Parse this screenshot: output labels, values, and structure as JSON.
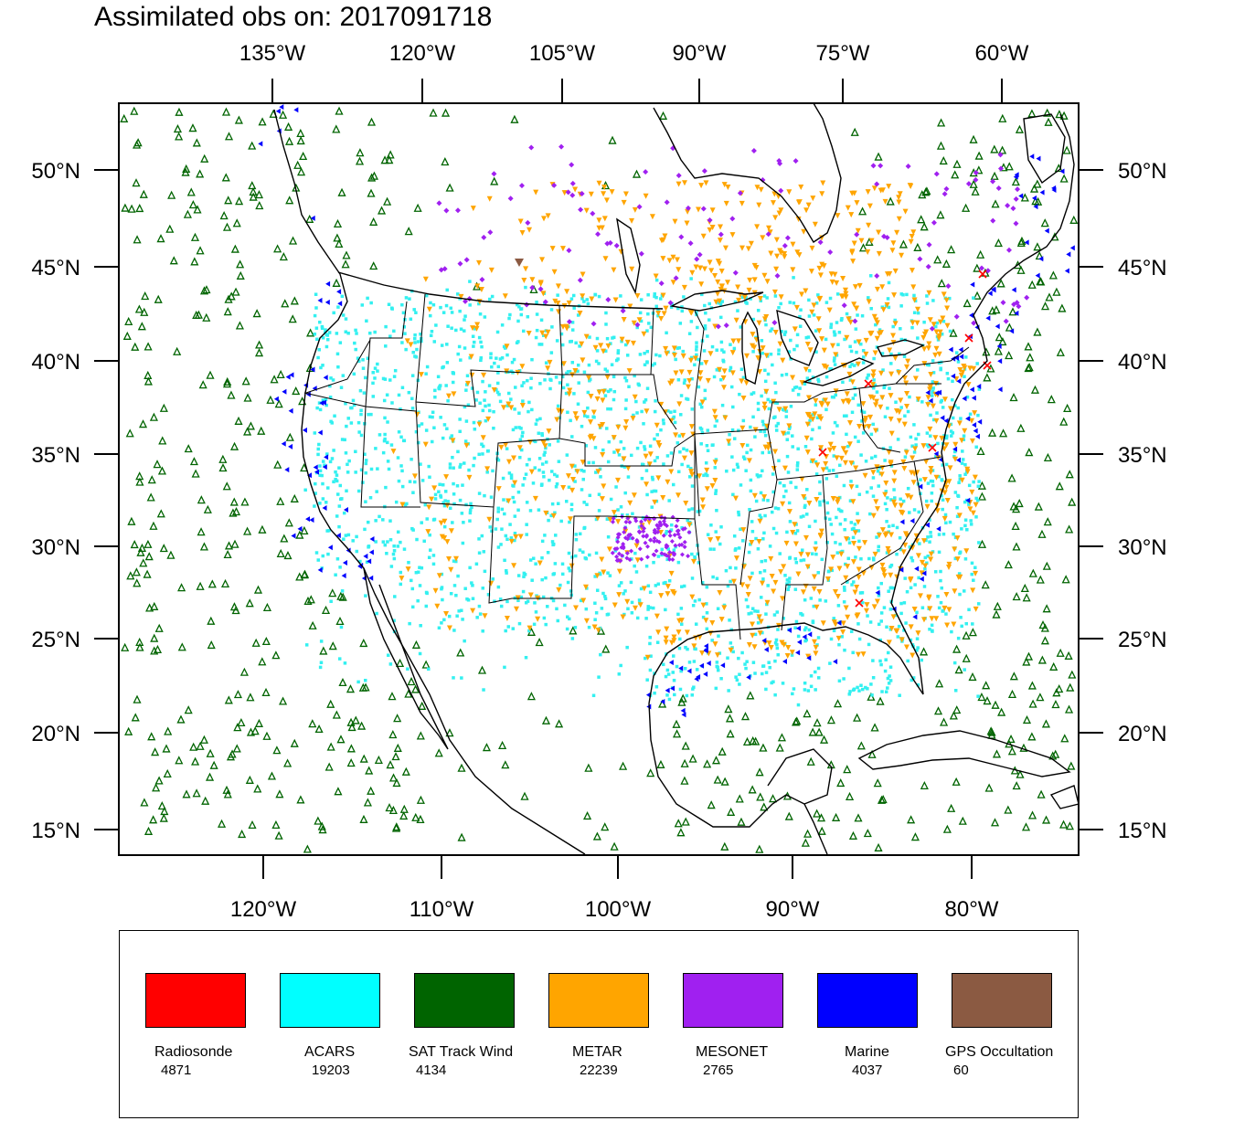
{
  "title": "Assimilated obs on: 2017091718",
  "axes": {
    "top_labels": [
      "135°W",
      "120°W",
      "105°W",
      "90°W",
      "75°W",
      "60°W"
    ],
    "bottom_labels": [
      "120°W",
      "110°W",
      "100°W",
      "90°W",
      "80°W"
    ],
    "left_labels": [
      "50°N",
      "45°N",
      "40°N",
      "35°N",
      "30°N",
      "25°N",
      "20°N",
      "15°N"
    ],
    "right_labels": [
      "50°N",
      "45°N",
      "40°N",
      "35°N",
      "30°N",
      "25°N",
      "20°N",
      "15°N"
    ]
  },
  "legend": [
    {
      "name": "Radiosonde",
      "count": "4871",
      "color": "#ff0000"
    },
    {
      "name": "ACARS",
      "count": "19203",
      "color": "#00ffff"
    },
    {
      "name": "SAT Track Wind",
      "count": "4134",
      "color": "#006400"
    },
    {
      "name": "METAR",
      "count": "22239",
      "color": "#ffa500"
    },
    {
      "name": "MESONET",
      "count": "2765",
      "color": "#a020f0"
    },
    {
      "name": "Marine",
      "count": "4037",
      "color": "#0000ff"
    },
    {
      "name": "GPS Occultation",
      "count": "60",
      "color": "#8b5a42"
    }
  ],
  "colors": {
    "frame": "#000000",
    "coast": "#000000",
    "point_cyan": "#33f0f0"
  }
}
